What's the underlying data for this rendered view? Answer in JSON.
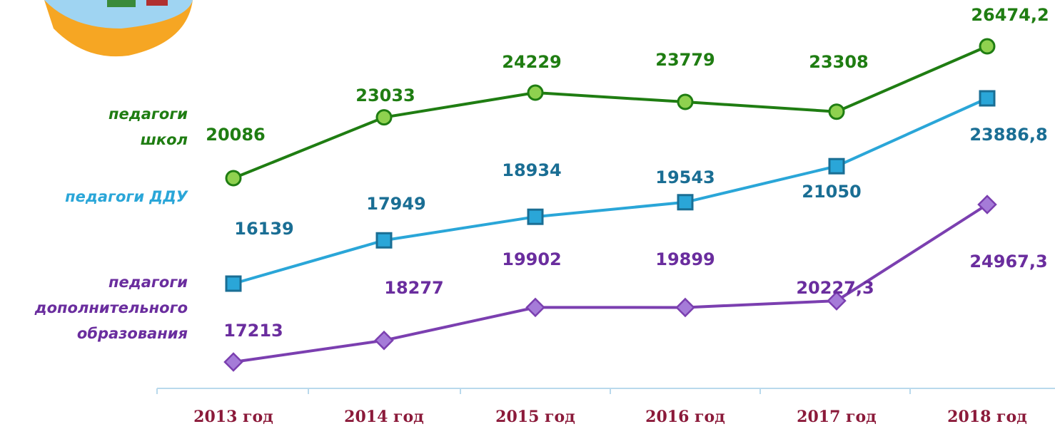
{
  "chart_data": {
    "type": "line",
    "categories": [
      "2013 год",
      "2014 год",
      "2015 год",
      "2016 год",
      "2017 год",
      "2018 год"
    ],
    "series": [
      {
        "name": "педагоги школ",
        "color": "#1f7d12",
        "marker": "circle",
        "marker_color": "#8fd14f",
        "values": [
          20086,
          23033,
          24229,
          23779,
          23308,
          26474.2
        ],
        "value_labels": [
          "20086",
          "23033",
          "24229",
          "23779",
          "23308",
          "26474,2"
        ]
      },
      {
        "name": "педагоги ДДУ",
        "color": "#2aa6d8",
        "marker": "square",
        "marker_color": "#2aa6d8",
        "values": [
          16139,
          17949,
          18934,
          19543,
          21050,
          23886.8
        ],
        "value_labels": [
          "16139",
          "17949",
          "18934",
          "19543",
          "21050",
          "23886,8"
        ]
      },
      {
        "name": "педагоги дополнительного образования",
        "color": "#7b3fb0",
        "marker": "diamond",
        "marker_color": "#a57bd8",
        "values": [
          17213,
          18277,
          19902,
          19899,
          20227.3,
          24967.3
        ],
        "value_labels": [
          "17213",
          "18277",
          "19902",
          "19899",
          "20227,3",
          "24967,3"
        ]
      }
    ]
  }
}
